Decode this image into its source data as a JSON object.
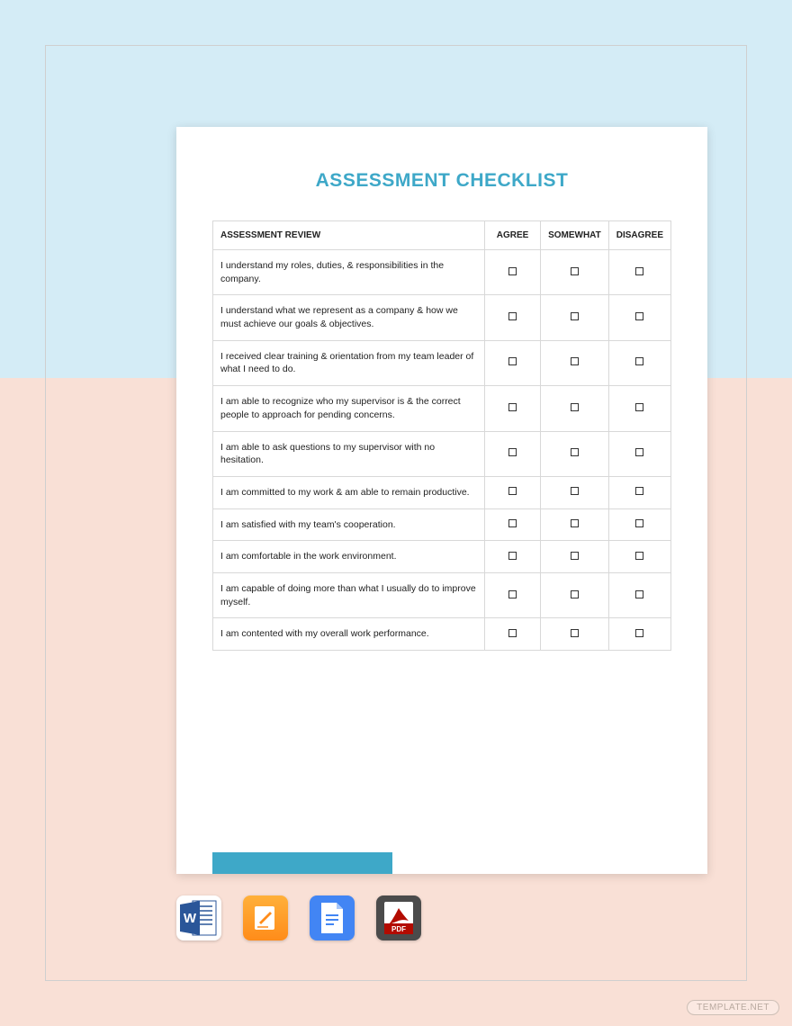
{
  "document": {
    "title": "ASSESSMENT CHECKLIST",
    "title_color": "#3ea8c8",
    "accent_bar_color": "#3ea8c8",
    "background_top_color": "#d4ecf6",
    "background_bottom_color": "#f9e0d6",
    "table": {
      "columns": [
        "ASSESSMENT REVIEW",
        "AGREE",
        "SOMEWHAT",
        "DISAGREE"
      ],
      "rows": [
        "I understand my roles, duties, & responsibilities in the company.",
        "I understand what we represent as a company & how we must achieve our goals & objectives.",
        "I received clear training & orientation from my team leader of what I need to do.",
        "I am able to recognize who my supervisor is & the correct people to approach for pending concerns.",
        "I am able to ask questions to my supervisor with no hesitation.",
        "I am committed to my work & am able to remain productive.",
        "I am satisfied with my team's cooperation.",
        "I am comfortable in the work environment.",
        "I am capable of doing more than what I usually do to improve myself.",
        "I am contented with my overall work performance."
      ]
    }
  },
  "icons": [
    {
      "name": "word-icon",
      "label": "W"
    },
    {
      "name": "pages-icon",
      "label": "✎"
    },
    {
      "name": "docs-icon",
      "label": "≡"
    },
    {
      "name": "pdf-icon",
      "label": "PDF"
    }
  ],
  "watermark": "TEMPLATE.NET"
}
